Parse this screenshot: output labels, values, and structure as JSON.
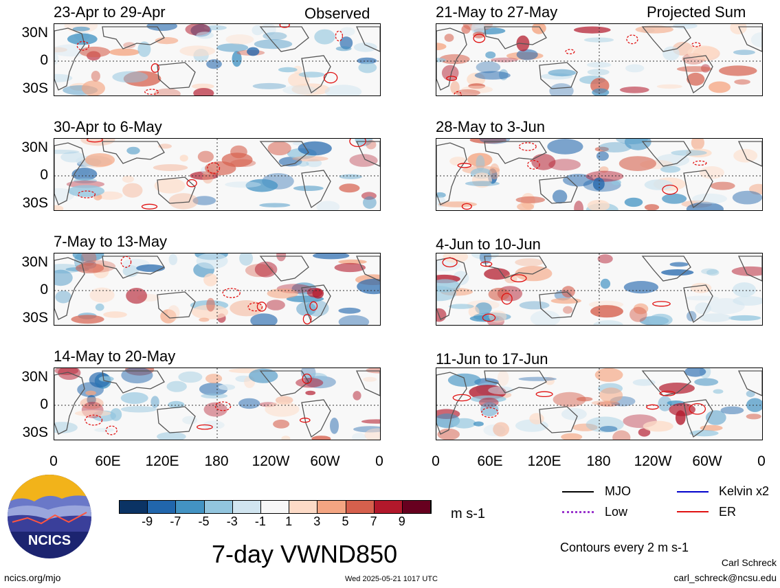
{
  "panel_titles": {
    "left": [
      "23-Apr to 29-Apr",
      "30-Apr to 6-May",
      "7-May to 13-May",
      "14-May to 20-May"
    ],
    "right": [
      "21-May to 27-May",
      "28-May to 3-Jun",
      "4-Jun to 10-Jun",
      "11-Jun to 17-Jun"
    ]
  },
  "column_headers": {
    "left": "Observed",
    "right": "Projected Sum"
  },
  "y_ticks": [
    "30N",
    "0",
    "30S"
  ],
  "x_ticks": [
    "0",
    "60E",
    "120E",
    "180",
    "120W",
    "60W",
    "0"
  ],
  "colorbar": {
    "ticks": [
      "-9",
      "-7",
      "-5",
      "-3",
      "-1",
      "1",
      "3",
      "5",
      "7",
      "9"
    ],
    "colors": [
      "#0b3364",
      "#2166ac",
      "#4393c3",
      "#92c5de",
      "#d1e5f0",
      "#f7f7f7",
      "#fddbc7",
      "#f4a582",
      "#d6604d",
      "#b2182b",
      "#67001f"
    ],
    "units": "m s-1"
  },
  "title": "7-day VWND850",
  "legend": {
    "items": [
      {
        "label": "MJO",
        "color": "#000000"
      },
      {
        "label": "Kelvin x2",
        "color": "#0000cc"
      },
      {
        "label": "Low",
        "color": "#9933cc"
      },
      {
        "label": "ER",
        "color": "#e01010"
      }
    ],
    "contour_note": "Contours every 2 m s-1"
  },
  "footer": {
    "url": "ncics.org/mjo",
    "timestamp": "Wed 2025-05-21 1017 UTC",
    "author": "Carl Schreck",
    "email": "carl_schreck@ncsu.edu"
  },
  "logo": {
    "text": "NCICS"
  }
}
